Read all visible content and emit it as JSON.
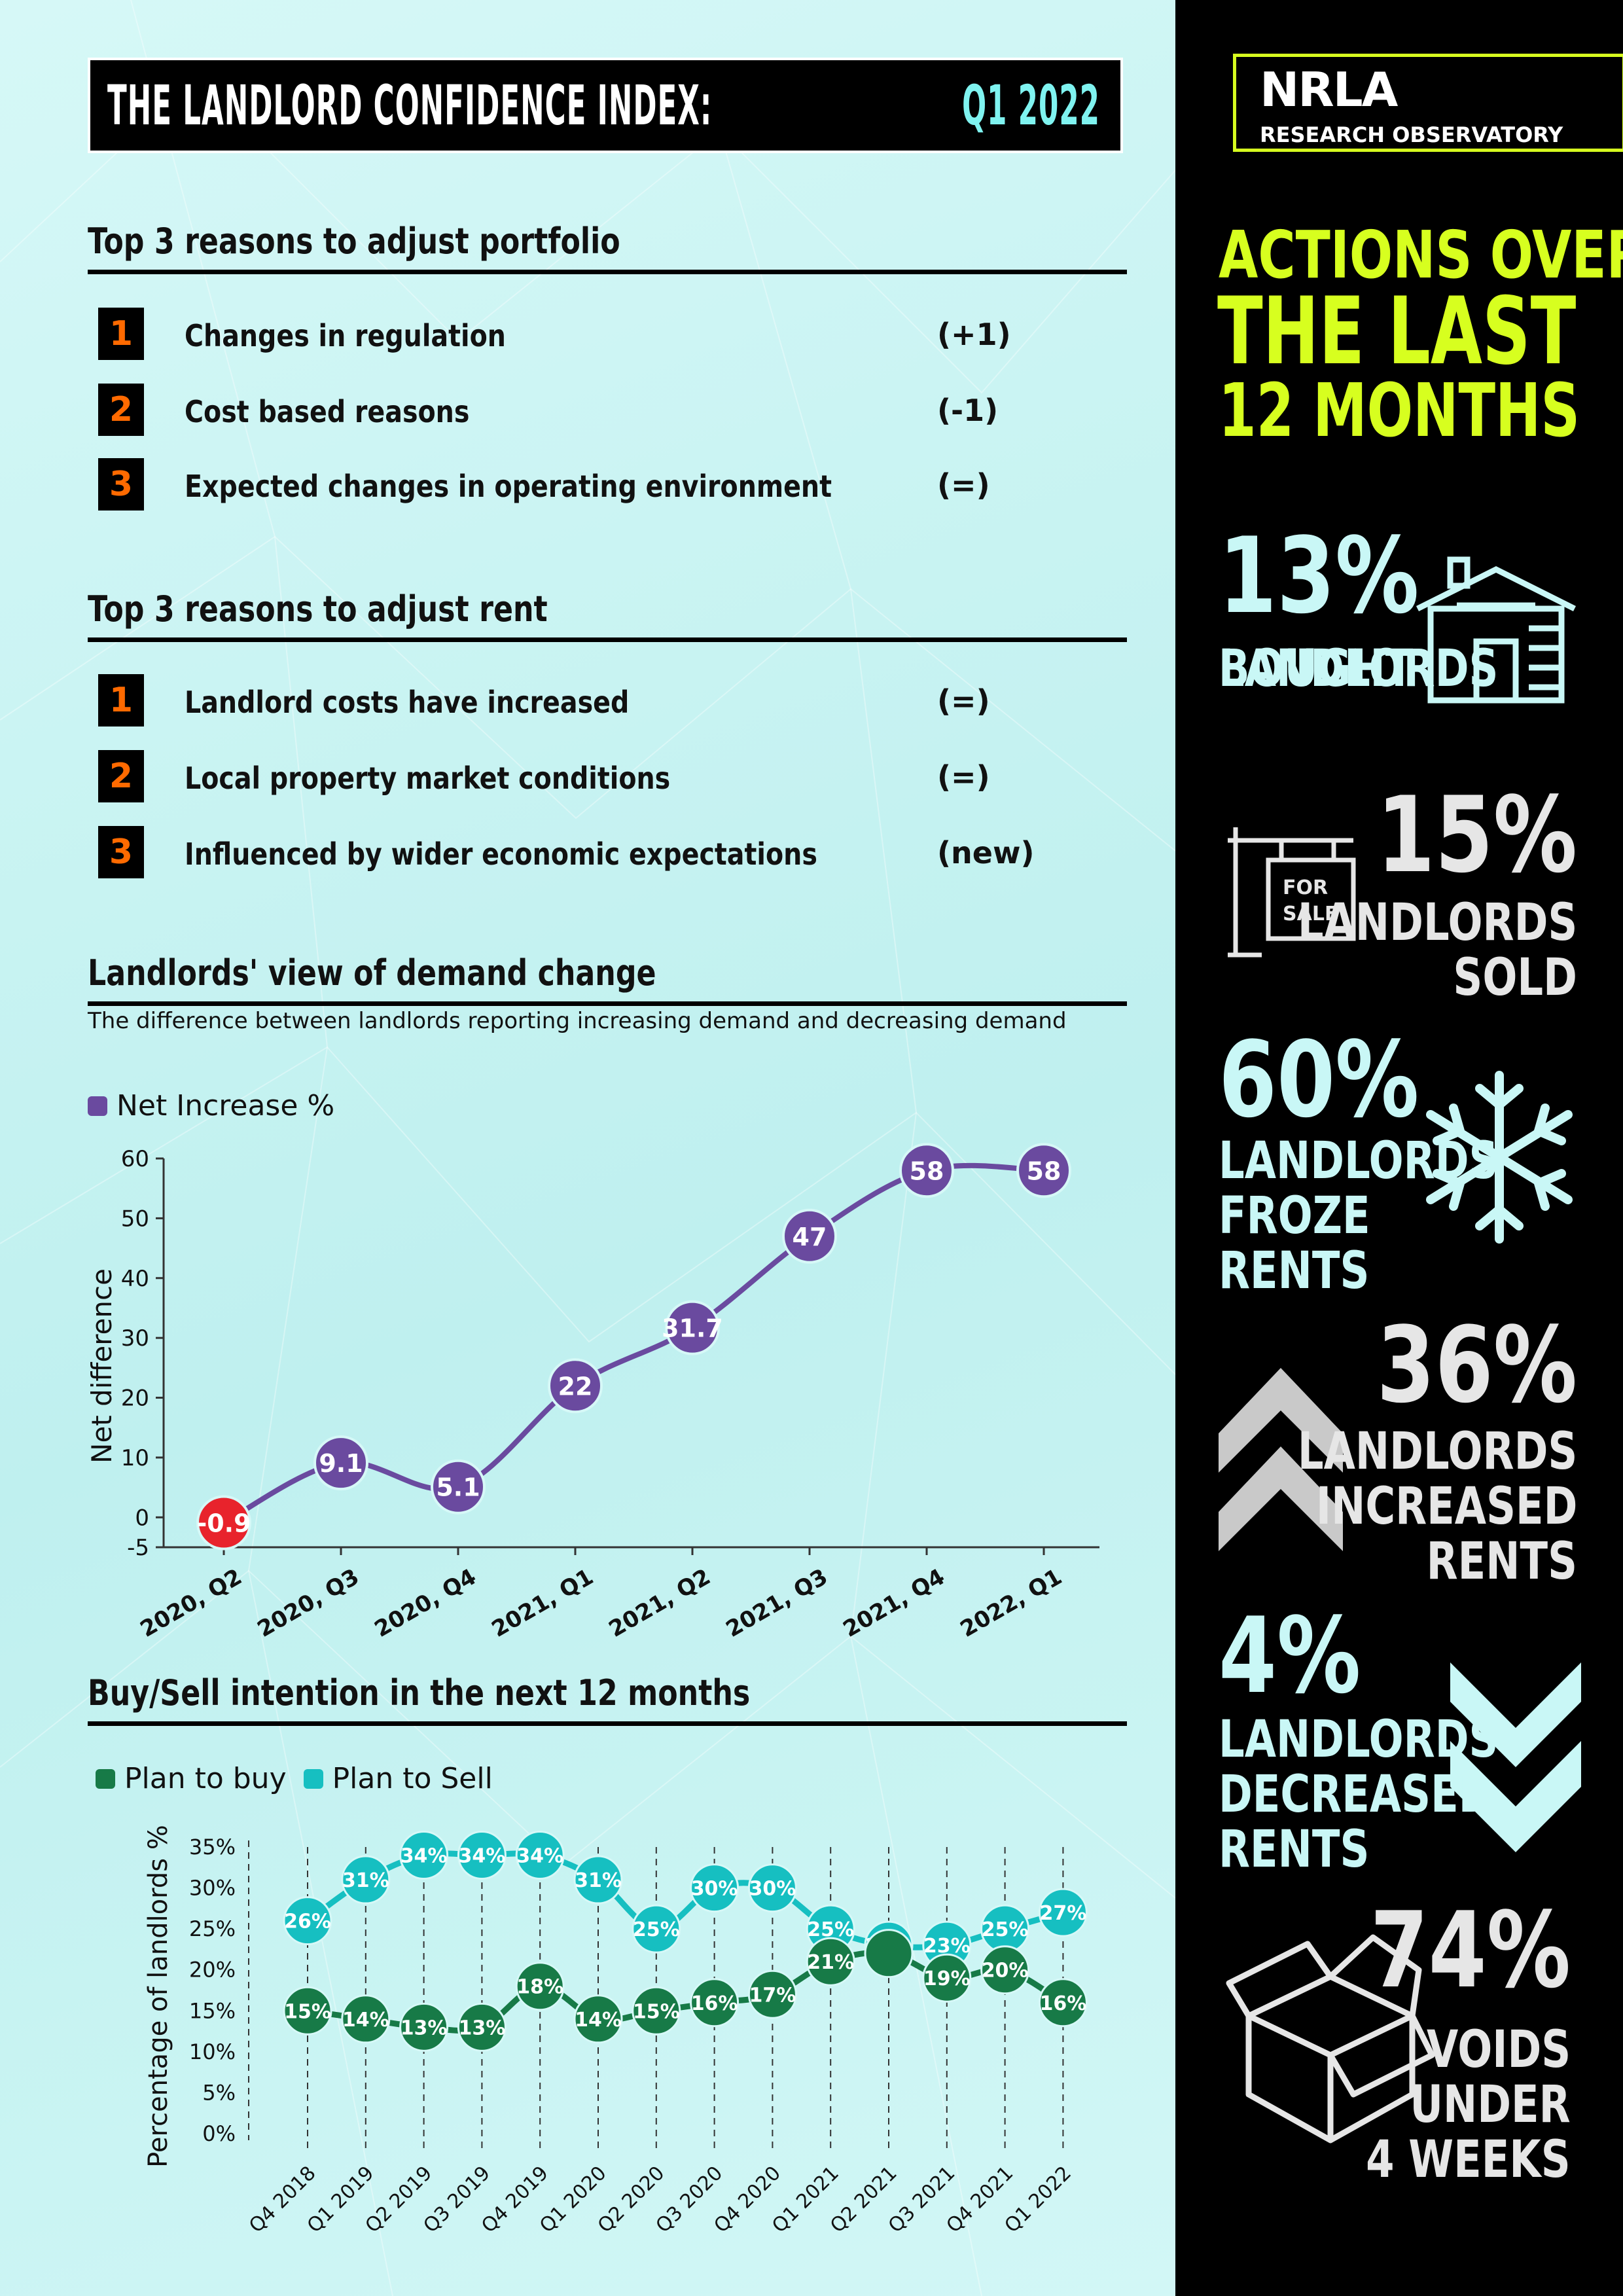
{
  "title": {
    "main": "THE LANDLORD CONFIDENCE INDEX:",
    "period": "Q1 2022"
  },
  "portfolio": {
    "heading": "Top 3 reasons to adjust portfolio",
    "items": [
      {
        "rank": "1",
        "text": "Changes in regulation",
        "change": "(+1)"
      },
      {
        "rank": "2",
        "text": "Cost based reasons",
        "change": "(-1)"
      },
      {
        "rank": "3",
        "text": "Expected changes in operating environment",
        "change": "(=)"
      }
    ]
  },
  "rent": {
    "heading": "Top 3 reasons to adjust rent",
    "items": [
      {
        "rank": "1",
        "text": "Landlord costs have increased",
        "change": "(=)"
      },
      {
        "rank": "2",
        "text": "Local property market conditions",
        "change": "(=)"
      },
      {
        "rank": "3",
        "text": "Influenced by wider economic expectations",
        "change": "(new)"
      }
    ]
  },
  "demand": {
    "heading": "Landlords' view of demand change",
    "subtitle": "The difference between landlords reporting increasing demand and decreasing demand"
  },
  "buysell": {
    "heading": "Buy/Sell intention in the next 12 months"
  },
  "chart_data": [
    {
      "type": "line",
      "title": "Landlords' view of demand change",
      "categories": [
        "2020, Q2",
        "2020, Q3",
        "2020, Q4",
        "2021, Q1",
        "2021, Q2",
        "2021, Q3",
        "2021, Q4",
        "2022, Q1"
      ],
      "series": [
        {
          "name": "Net Increase %",
          "values": [
            -0.9,
            9.1,
            5.1,
            22,
            31.7,
            47,
            58,
            58
          ],
          "color": "#6a4a9f"
        }
      ],
      "negative_color": "#e8232c",
      "ylabel": "Net difference",
      "ylim": [
        -5,
        60
      ],
      "yticks": [
        "60",
        "50",
        "40",
        "30",
        "20",
        "10",
        "0",
        "-5"
      ],
      "legend": "top-left"
    },
    {
      "type": "line",
      "categories": [
        "Q4 2018",
        "Q1 2019",
        "Q2 2019",
        "Q3 2019",
        "Q4 2019",
        "Q1 2020",
        "Q2 2020",
        "Q3 2020",
        "Q4 2020",
        "Q1 2021",
        "Q2 2021",
        "Q3 2021",
        "Q4 2021",
        "Q1 2022"
      ],
      "series": [
        {
          "name": "Plan to buy",
          "values": [
            15,
            14,
            13,
            13,
            18,
            14,
            15,
            16,
            17,
            21,
            22,
            19,
            20,
            16
          ],
          "color": "#177a47"
        },
        {
          "name": "Plan to Sell",
          "values": [
            26,
            31,
            34,
            34,
            34,
            31,
            25,
            30,
            30,
            25,
            23,
            23,
            25,
            27
          ],
          "color": "#16bfc1"
        }
      ],
      "point_labels": {
        "Plan to buy": [
          "15%",
          "14%",
          "13%",
          "13%",
          "18%",
          "14%",
          "15%",
          "16%",
          "17%",
          "21%",
          "",
          "19%",
          "20%",
          "16%"
        ],
        "Plan to Sell": [
          "26%",
          "31%",
          "34%",
          "34%",
          "34%",
          "31%",
          "25%",
          "30%",
          "30%",
          "25%",
          "23%",
          "23%",
          "25%",
          "27%"
        ]
      },
      "ylabel": "Percentage of landlords %",
      "ylim": [
        0,
        35
      ],
      "yticks": [
        "35%",
        "30%",
        "25%",
        "20%",
        "15%",
        "10%",
        "5%",
        "0%"
      ],
      "grid": "vertical dashed",
      "legend": "top-left"
    }
  ],
  "panel": {
    "logo": "NRLA",
    "logo_sub": "RESEARCH OBSERVATORY",
    "actions": [
      "ACTIONS OVER",
      "THE LAST",
      "12 MONTHS"
    ],
    "stats": [
      {
        "pct": "13%",
        "lines": [
          "LANDLORDS",
          "BOUGHT"
        ],
        "icon": "house-icon",
        "color": "#c9f7f6"
      },
      {
        "pct": "15%",
        "lines": [
          "LANDLORDS",
          "SOLD"
        ],
        "icon": "for-sale-sign-icon",
        "sign": [
          "FOR",
          "SALE"
        ],
        "color": "#e6e6e6"
      },
      {
        "pct": "60%",
        "lines": [
          "LANDLORDS",
          "FROZE",
          "RENTS"
        ],
        "icon": "snowflake-icon",
        "color": "#c9f7f6"
      },
      {
        "pct": "36%",
        "lines": [
          "LANDLORDS",
          "INCREASED",
          "RENTS"
        ],
        "icon": "double-chevron-up-icon",
        "color": "#e6e6e6"
      },
      {
        "pct": "4%",
        "lines": [
          "LANDLORDS",
          "DECREASED",
          "RENTS"
        ],
        "icon": "double-chevron-down-icon",
        "color": "#c9f7f6"
      },
      {
        "pct": "74%",
        "lines": [
          "VOIDS",
          "UNDER",
          "4 WEEKS"
        ],
        "icon": "open-box-icon",
        "color": "#e6e6e6"
      }
    ]
  }
}
